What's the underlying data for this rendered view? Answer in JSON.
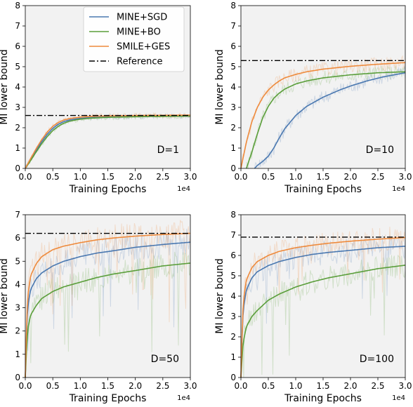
{
  "chart_data": [
    {
      "type": "line",
      "label": "D=1",
      "xlabel": "Training Epochs",
      "ylabel": "MI lower bound",
      "x_offset_label": "1e4",
      "xlim": [
        0,
        3.0
      ],
      "ylim": [
        0,
        8
      ],
      "xticks": [
        "0.0",
        "0.5",
        "1.0",
        "1.5",
        "2.0",
        "2.5",
        "3.0"
      ],
      "yticks": [
        "0",
        "1",
        "2",
        "3",
        "4",
        "5",
        "6",
        "7",
        "8"
      ],
      "reference": 2.6,
      "series": [
        {
          "name": "MINE+SGD",
          "color": "#4a78b0",
          "x": [
            0.0,
            0.1,
            0.2,
            0.3,
            0.4,
            0.5,
            0.6,
            0.7,
            0.8,
            1.0,
            1.2,
            1.5,
            2.0,
            2.5,
            3.0
          ],
          "y": [
            0.0,
            0.45,
            0.9,
            1.32,
            1.68,
            1.97,
            2.17,
            2.3,
            2.38,
            2.46,
            2.5,
            2.53,
            2.55,
            2.57,
            2.58
          ]
        },
        {
          "name": "MINE+BO",
          "color": "#5a9e3a",
          "x": [
            0.0,
            0.1,
            0.2,
            0.3,
            0.4,
            0.5,
            0.6,
            0.7,
            0.8,
            1.0,
            1.2,
            1.5,
            2.0,
            2.5,
            3.0
          ],
          "y": [
            0.0,
            0.4,
            0.82,
            1.22,
            1.57,
            1.86,
            2.07,
            2.22,
            2.32,
            2.42,
            2.47,
            2.51,
            2.54,
            2.56,
            2.57
          ]
        },
        {
          "name": "SMILE+GES",
          "color": "#ee8a3c",
          "x": [
            0.0,
            0.1,
            0.2,
            0.3,
            0.4,
            0.5,
            0.6,
            0.7,
            0.8,
            1.0,
            1.2,
            1.5,
            2.0,
            2.5,
            3.0
          ],
          "y": [
            0.0,
            0.5,
            0.98,
            1.42,
            1.79,
            2.07,
            2.26,
            2.38,
            2.45,
            2.52,
            2.56,
            2.58,
            2.6,
            2.61,
            2.62
          ]
        }
      ]
    },
    {
      "type": "line",
      "label": "D=10",
      "xlabel": "Training Epochs",
      "ylabel": "MI lower bound",
      "x_offset_label": "1e4",
      "xlim": [
        0,
        3.0
      ],
      "ylim": [
        0,
        8
      ],
      "xticks": [
        "0.0",
        "0.5",
        "1.0",
        "1.5",
        "2.0",
        "2.5",
        "3.0"
      ],
      "yticks": [
        "0",
        "1",
        "2",
        "3",
        "4",
        "5",
        "6",
        "7",
        "8"
      ],
      "reference": 5.3,
      "series": [
        {
          "name": "MINE+SGD",
          "color": "#4a78b0",
          "x": [
            0.25,
            0.3,
            0.4,
            0.5,
            0.6,
            0.7,
            0.8,
            1.0,
            1.2,
            1.5,
            1.8,
            2.0,
            2.3,
            2.6,
            3.0
          ],
          "y": [
            0.0,
            0.15,
            0.35,
            0.6,
            1.0,
            1.5,
            1.95,
            2.6,
            3.05,
            3.5,
            3.85,
            4.05,
            4.3,
            4.5,
            4.7
          ]
        },
        {
          "name": "MINE+BO",
          "color": "#5a9e3a",
          "x": [
            0.1,
            0.2,
            0.3,
            0.4,
            0.5,
            0.6,
            0.7,
            0.8,
            1.0,
            1.2,
            1.5,
            2.0,
            2.5,
            3.0
          ],
          "y": [
            0.0,
            0.8,
            1.7,
            2.5,
            3.05,
            3.45,
            3.7,
            3.9,
            4.15,
            4.3,
            4.45,
            4.6,
            4.7,
            4.75
          ]
        },
        {
          "name": "SMILE+GES",
          "color": "#ee8a3c",
          "x": [
            0.0,
            0.1,
            0.2,
            0.3,
            0.4,
            0.5,
            0.6,
            0.7,
            0.8,
            1.0,
            1.2,
            1.5,
            2.0,
            2.5,
            3.0
          ],
          "y": [
            0.0,
            1.3,
            2.3,
            3.0,
            3.5,
            3.85,
            4.1,
            4.3,
            4.45,
            4.62,
            4.75,
            4.88,
            5.02,
            5.12,
            5.2
          ]
        }
      ]
    },
    {
      "type": "line",
      "label": "D=50",
      "xlabel": "Training Epochs",
      "ylabel": "MI lower bound",
      "x_offset_label": "1e4",
      "xlim": [
        0,
        3.0
      ],
      "ylim": [
        0,
        7
      ],
      "xticks": [
        "0.0",
        "0.5",
        "1.0",
        "1.5",
        "2.0",
        "2.5",
        "3.0"
      ],
      "yticks": [
        "0",
        "1",
        "2",
        "3",
        "4",
        "5",
        "6",
        "7"
      ],
      "reference": 6.2,
      "series": [
        {
          "name": "MINE+SGD",
          "color": "#4a78b0",
          "x": [
            0.0,
            0.03,
            0.06,
            0.1,
            0.2,
            0.3,
            0.5,
            0.7,
            1.0,
            1.3,
            1.6,
            2.0,
            2.5,
            3.0
          ],
          "y": [
            0.0,
            2.5,
            3.3,
            3.8,
            4.25,
            4.5,
            4.8,
            5.0,
            5.2,
            5.35,
            5.45,
            5.6,
            5.72,
            5.82
          ]
        },
        {
          "name": "MINE+BO",
          "color": "#5a9e3a",
          "x": [
            0.0,
            0.03,
            0.06,
            0.1,
            0.2,
            0.3,
            0.5,
            0.7,
            1.0,
            1.3,
            1.6,
            2.0,
            2.5,
            3.0
          ],
          "y": [
            0.0,
            1.6,
            2.3,
            2.7,
            3.1,
            3.4,
            3.7,
            3.9,
            4.1,
            4.3,
            4.45,
            4.6,
            4.8,
            4.92
          ]
        },
        {
          "name": "SMILE+GES",
          "color": "#ee8a3c",
          "x": [
            0.0,
            0.03,
            0.06,
            0.1,
            0.2,
            0.3,
            0.5,
            0.7,
            1.0,
            1.3,
            1.6,
            2.0,
            2.5,
            3.0
          ],
          "y": [
            0.0,
            2.8,
            3.8,
            4.4,
            4.9,
            5.2,
            5.5,
            5.65,
            5.8,
            5.92,
            6.0,
            6.08,
            6.15,
            6.2
          ]
        }
      ]
    },
    {
      "type": "line",
      "label": "D=100",
      "xlabel": "Training Epochs",
      "ylabel": "MI lower bound",
      "x_offset_label": "1e4",
      "xlim": [
        0,
        3.0
      ],
      "ylim": [
        0,
        8
      ],
      "xticks": [
        "0.0",
        "0.5",
        "1.0",
        "1.5",
        "2.0",
        "2.5",
        "3.0"
      ],
      "yticks": [
        "0",
        "1",
        "2",
        "3",
        "4",
        "5",
        "6",
        "7",
        "8"
      ],
      "reference": 6.9,
      "series": [
        {
          "name": "MINE+SGD",
          "color": "#4a78b0",
          "x": [
            0.0,
            0.03,
            0.06,
            0.1,
            0.2,
            0.3,
            0.5,
            0.7,
            1.0,
            1.3,
            1.6,
            2.0,
            2.5,
            3.0
          ],
          "y": [
            0.0,
            2.8,
            3.7,
            4.3,
            4.9,
            5.2,
            5.5,
            5.7,
            5.9,
            6.05,
            6.15,
            6.25,
            6.38,
            6.45
          ]
        },
        {
          "name": "MINE+BO",
          "color": "#5a9e3a",
          "x": [
            0.0,
            0.03,
            0.06,
            0.1,
            0.2,
            0.3,
            0.5,
            0.7,
            1.0,
            1.3,
            1.6,
            2.0,
            2.5,
            3.0
          ],
          "y": [
            0.0,
            1.4,
            2.0,
            2.5,
            3.0,
            3.3,
            3.8,
            4.1,
            4.45,
            4.7,
            4.9,
            5.1,
            5.35,
            5.52
          ]
        },
        {
          "name": "SMILE+GES",
          "color": "#ee8a3c",
          "x": [
            0.0,
            0.03,
            0.06,
            0.1,
            0.2,
            0.3,
            0.5,
            0.7,
            1.0,
            1.3,
            1.6,
            2.0,
            2.5,
            3.0
          ],
          "y": [
            0.0,
            3.0,
            4.1,
            4.8,
            5.4,
            5.7,
            6.0,
            6.2,
            6.38,
            6.5,
            6.6,
            6.7,
            6.8,
            6.88
          ]
        }
      ]
    }
  ],
  "legend": {
    "placement": "top-left panel, top-right",
    "entries": [
      {
        "label": "MINE+SGD",
        "color": "#4a78b0",
        "style": "solid"
      },
      {
        "label": "MINE+BO",
        "color": "#5a9e3a",
        "style": "solid"
      },
      {
        "label": "SMILE+GES",
        "color": "#ee8a3c",
        "style": "solid"
      },
      {
        "label": "Reference",
        "color": "#000000",
        "style": "dashdot"
      }
    ]
  },
  "colors": {
    "axes_bg": "#f2f2f2",
    "reference": "#000000"
  }
}
